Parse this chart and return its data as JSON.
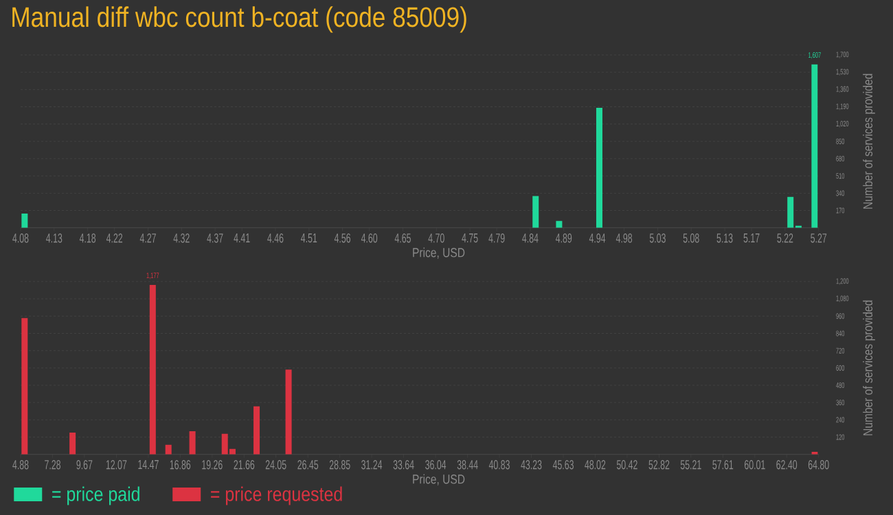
{
  "chart_data": [
    {
      "type": "bar",
      "title": "Manual diff wbc count b-coat (code 85009)",
      "xlabel": "Price, USD",
      "ylabel": "Number of services provided",
      "x": [
        4.086,
        4.848,
        4.883,
        4.943,
        5.228,
        5.24,
        5.264
      ],
      "series": [
        {
          "name": "= price paid",
          "color": "#20d99b",
          "values": [
            140,
            312,
            68,
            1180,
            304,
            20,
            1607
          ],
          "value_labels": [
            null,
            null,
            null,
            null,
            null,
            null,
            "1,607"
          ]
        }
      ],
      "xlim": [
        4.08,
        5.27
      ],
      "xticks": [
        4.08,
        4.13,
        4.18,
        4.22,
        4.27,
        4.32,
        4.37,
        4.41,
        4.46,
        4.51,
        4.56,
        {
          "value": 4.6,
          "label": "4.60"
        },
        4.65,
        {
          "value": 4.7,
          "label": "4.70"
        },
        4.75,
        4.79,
        4.84,
        4.89,
        4.94,
        4.98,
        5.03,
        5.08,
        5.13,
        5.17,
        5.22,
        5.27
      ],
      "ylim": [
        0,
        1700
      ],
      "yticks": [
        170,
        340,
        510,
        680,
        850,
        {
          "value": 1020,
          "label": "1,020"
        },
        {
          "value": 1190,
          "label": "1,190"
        },
        {
          "value": 1360,
          "label": "1,360"
        },
        {
          "value": 1530,
          "label": "1,530"
        },
        {
          "value": 1700,
          "label": "1,700"
        }
      ],
      "grid": "y",
      "legend": "bottom left"
    },
    {
      "type": "bar",
      "xlabel": "Price, USD",
      "ylabel": "Number of services provided",
      "x": [
        5.18,
        8.78,
        14.8,
        15.98,
        17.78,
        20.21,
        20.79,
        22.6,
        25.0,
        64.51
      ],
      "series": [
        {
          "name": "= price requested",
          "color": "#dc3341",
          "values": [
            946,
            151,
            1177,
            66,
            161,
            143,
            38,
            334,
            588,
            18
          ],
          "value_labels": [
            null,
            null,
            "1,177",
            null,
            null,
            null,
            null,
            null,
            null,
            null
          ]
        }
      ],
      "xlim": [
        4.88,
        64.8
      ],
      "xticks": [
        4.88,
        7.28,
        9.67,
        12.07,
        14.47,
        16.86,
        19.26,
        21.66,
        24.05,
        26.45,
        28.85,
        31.24,
        33.64,
        36.04,
        38.44,
        40.83,
        43.23,
        45.63,
        48.02,
        50.42,
        52.82,
        55.21,
        57.61,
        60.01,
        {
          "value": 62.4,
          "label": "62.40"
        },
        {
          "value": 64.8,
          "label": "64.80"
        }
      ],
      "ylim": [
        0,
        1200
      ],
      "yticks": [
        120,
        240,
        360,
        480,
        600,
        720,
        840,
        960,
        {
          "value": 1080,
          "label": "1,080"
        },
        {
          "value": 1200,
          "label": "1,200"
        }
      ],
      "grid": "y",
      "legend": "bottom left"
    }
  ]
}
